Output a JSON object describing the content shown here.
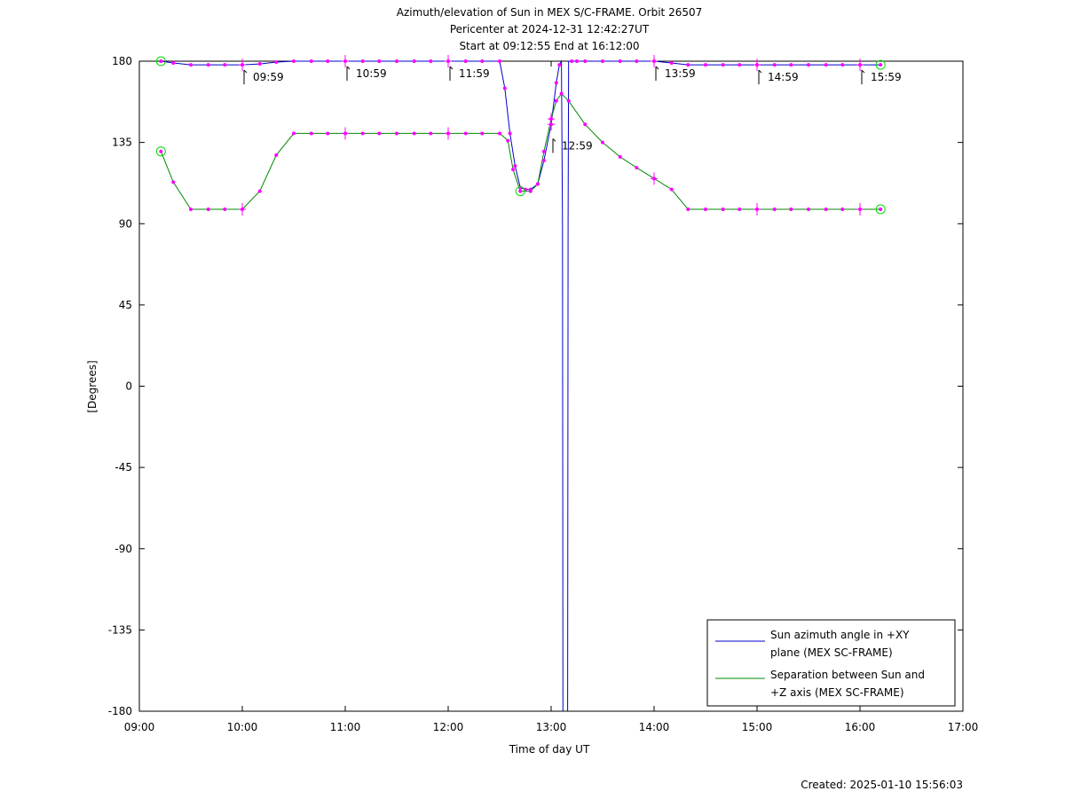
{
  "chart_data": {
    "type": "line",
    "title_lines": [
      "Azimuth/elevation of Sun in MEX S/C-FRAME.  Orbit 26507",
      "Pericenter at 2024-12-31 12:42:27UT",
      "Start at 09:12:55 End at 16:12:00"
    ],
    "xlabel": "Time of day UT",
    "ylabel": "[Degrees]",
    "xlim": [
      9,
      17
    ],
    "ylim": [
      -180,
      180
    ],
    "x_ticks": [
      {
        "value": 9,
        "label": "09:00"
      },
      {
        "value": 10,
        "label": "10:00"
      },
      {
        "value": 11,
        "label": "11:00"
      },
      {
        "value": 12,
        "label": "12:00"
      },
      {
        "value": 13,
        "label": "13:00"
      },
      {
        "value": 14,
        "label": "14:00"
      },
      {
        "value": 15,
        "label": "15:00"
      },
      {
        "value": 16,
        "label": "16:00"
      },
      {
        "value": 17,
        "label": "17:00"
      }
    ],
    "y_ticks": [
      {
        "value": 180,
        "label": "180"
      },
      {
        "value": 135,
        "label": "135"
      },
      {
        "value": 90,
        "label": "90"
      },
      {
        "value": 45,
        "label": "45"
      },
      {
        "value": 0,
        "label": "0"
      },
      {
        "value": -45,
        "label": "-45"
      },
      {
        "value": -90,
        "label": "-90"
      },
      {
        "value": -135,
        "label": "-135"
      },
      {
        "value": -180,
        "label": "-180"
      }
    ],
    "annotations": [
      {
        "x": 10.0,
        "y": 178,
        "label": "09:59"
      },
      {
        "x": 11.0,
        "y": 180,
        "label": "10:59"
      },
      {
        "x": 12.0,
        "y": 180,
        "label": "11:59"
      },
      {
        "x": 13.0,
        "y": 140,
        "label": "12:59"
      },
      {
        "x": 14.0,
        "y": 180,
        "label": "13:59"
      },
      {
        "x": 15.0,
        "y": 178,
        "label": "14:59"
      },
      {
        "x": 16.0,
        "y": 178,
        "label": "15:59"
      }
    ],
    "legend_position": "bottom-right",
    "series": [
      {
        "name": "Sun azimuth angle in +XY plane (MEX SC-FRAME)",
        "name_lines": [
          "Sun azimuth angle in +XY",
          "plane (MEX SC-FRAME)"
        ],
        "color": "#0000cc",
        "x": [
          9.21,
          9.33,
          9.5,
          9.67,
          9.83,
          10.0,
          10.17,
          10.33,
          10.5,
          10.67,
          10.83,
          11.0,
          11.17,
          11.33,
          11.5,
          11.67,
          11.83,
          12.0,
          12.17,
          12.33,
          12.5,
          12.55,
          12.6,
          12.65,
          12.7,
          12.75,
          12.8,
          12.87,
          12.93,
          13.0,
          13.05,
          13.08,
          13.1,
          13.11,
          13.115
        ],
        "y": [
          180,
          179,
          178,
          178,
          178,
          178,
          178.5,
          179.5,
          180,
          180,
          180,
          180,
          180,
          180,
          180,
          180,
          180,
          180,
          180,
          180,
          180,
          165,
          140,
          122,
          110,
          109,
          109,
          112,
          125,
          145,
          168,
          178,
          180,
          90,
          -180
        ],
        "x2": [
          13.16,
          13.165,
          13.17,
          13.2,
          13.25,
          13.33,
          13.5,
          13.67,
          13.83,
          14.0,
          14.17,
          14.33,
          14.5,
          14.67,
          14.83,
          15.0,
          15.17,
          15.33,
          15.5,
          15.67,
          15.83,
          16.0,
          16.2
        ],
        "y2": [
          -180,
          90,
          180,
          180,
          180,
          180,
          180,
          180,
          180,
          180,
          179,
          178,
          178,
          178,
          178,
          178,
          178,
          178,
          178,
          178,
          178,
          178,
          178
        ]
      },
      {
        "name": "Separation between Sun and +Z axis (MEX SC-FRAME)",
        "name_lines": [
          "Separation between Sun and",
          "+Z axis (MEX SC-FRAME)"
        ],
        "color": "#008800",
        "x": [
          9.21,
          9.33,
          9.5,
          9.67,
          9.83,
          10.0,
          10.17,
          10.33,
          10.5,
          10.67,
          10.83,
          11.0,
          11.17,
          11.33,
          11.5,
          11.67,
          11.83,
          12.0,
          12.17,
          12.33,
          12.5,
          12.58,
          12.63,
          12.7,
          12.8,
          12.87,
          12.93,
          13.0,
          13.05,
          13.1,
          13.17,
          13.33,
          13.5,
          13.67,
          13.83,
          14.0,
          14.17,
          14.33,
          14.5,
          14.67,
          14.83,
          15.0,
          15.17,
          15.33,
          15.5,
          15.67,
          15.83,
          16.0,
          16.2
        ],
        "y": [
          130,
          113,
          98,
          98,
          98,
          98,
          108,
          128,
          140,
          140,
          140,
          140,
          140,
          140,
          140,
          140,
          140,
          140,
          140,
          140,
          140,
          136,
          120,
          108,
          108,
          112,
          130,
          148,
          158,
          162,
          158,
          145,
          135,
          127,
          121,
          115,
          109,
          98,
          98,
          98,
          98,
          98,
          98,
          98,
          98,
          98,
          98,
          98,
          98
        ]
      }
    ],
    "footer": "Created: 2025-01-10 15:56:03"
  }
}
